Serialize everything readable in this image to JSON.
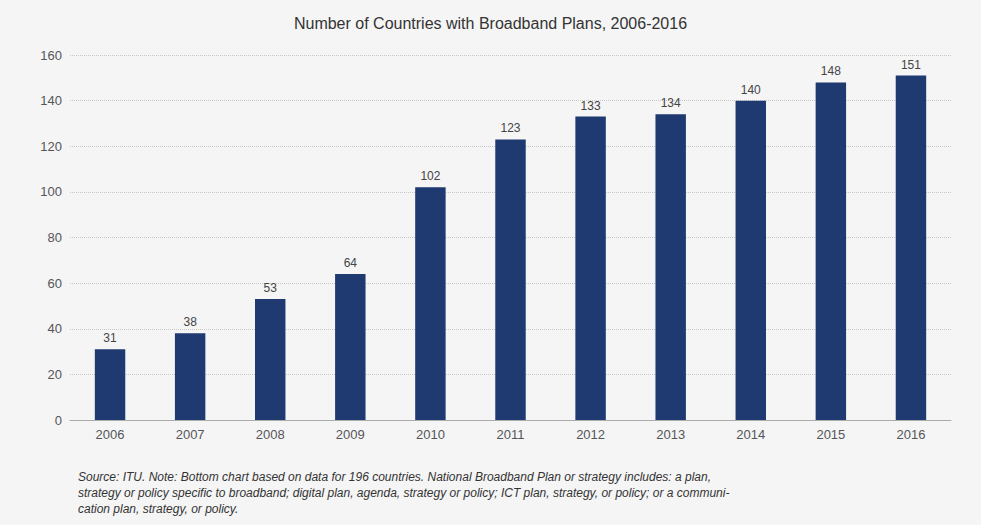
{
  "chart_data": {
    "type": "bar",
    "title": "Number of Countries with Broadband Plans, 2006-2016",
    "categories": [
      "2006",
      "2007",
      "2008",
      "2009",
      "2010",
      "2011",
      "2012",
      "2013",
      "2014",
      "2015",
      "2016"
    ],
    "values": [
      31,
      38,
      53,
      64,
      102,
      123,
      133,
      134,
      140,
      148,
      151
    ],
    "color": "#1e3a70",
    "ylim": [
      0,
      160
    ],
    "yticks": [
      0,
      20,
      40,
      60,
      80,
      100,
      120,
      140,
      160
    ],
    "grid": true,
    "data_labels": true,
    "annotations": [
      "Source: ITU. Note: Bottom chart based on data for 196 countries. National Broadband Plan or strategy includes: a plan,",
      "strategy or policy specific to broadband; digital plan, agenda, strategy or policy; ICT plan, strategy, or policy; or a communi-",
      "cation plan, strategy, or policy."
    ]
  }
}
